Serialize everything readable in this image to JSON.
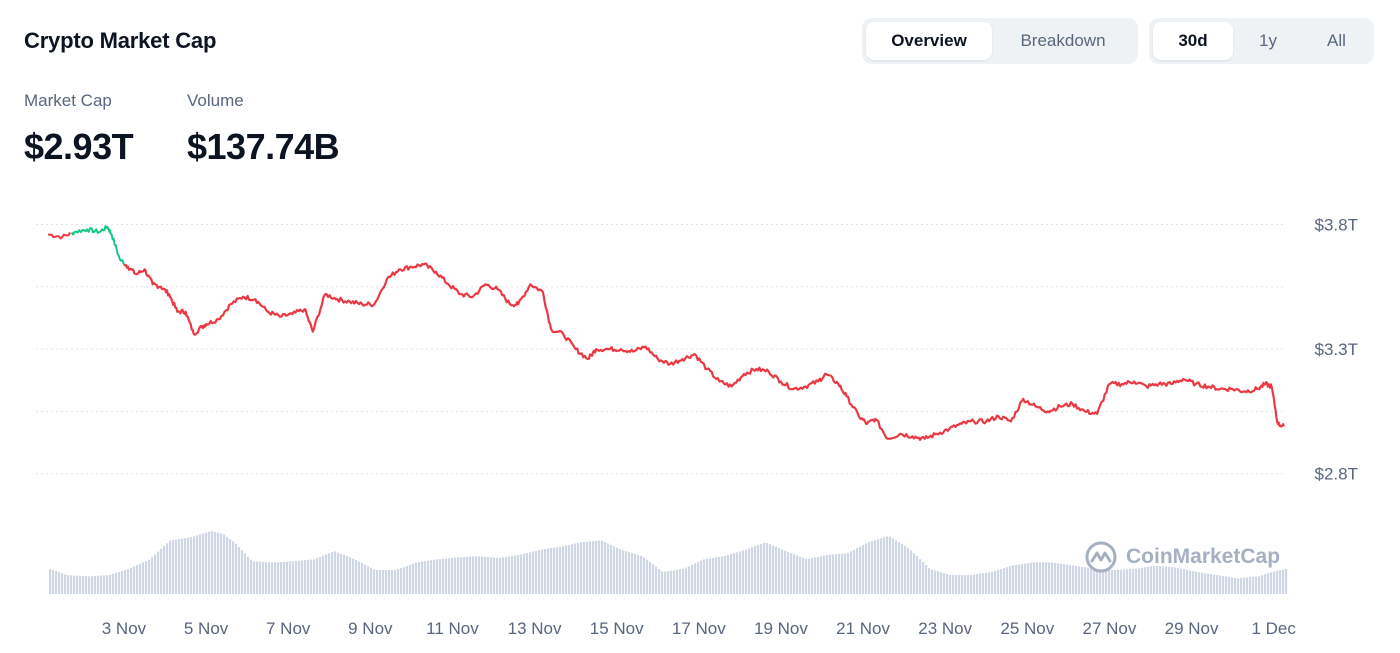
{
  "header": {
    "title": "Crypto Market Cap",
    "view_tabs": [
      {
        "label": "Overview",
        "active": true
      },
      {
        "label": "Breakdown",
        "active": false
      }
    ],
    "range_tabs": [
      {
        "label": "30d",
        "active": true
      },
      {
        "label": "1y",
        "active": false
      },
      {
        "label": "All",
        "active": false
      }
    ]
  },
  "stats": {
    "market_cap": {
      "label": "Market Cap",
      "value": "$2.93T"
    },
    "volume": {
      "label": "Volume",
      "value": "$137.74B"
    }
  },
  "watermark": "CoinMarketCap",
  "colors": {
    "line_down": "#ea3943",
    "line_up": "#16c784",
    "volume_fill": "#cfd6e4",
    "grid": "#e0e3eb",
    "text_secondary": "#58667e"
  },
  "chart_data": {
    "type": "line",
    "title": "",
    "xlabel": "",
    "ylabel": "",
    "x_ticks": [
      "3 Nov",
      "5 Nov",
      "7 Nov",
      "9 Nov",
      "11 Nov",
      "13 Nov",
      "15 Nov",
      "17 Nov",
      "19 Nov",
      "21 Nov",
      "23 Nov",
      "25 Nov",
      "27 Nov",
      "29 Nov",
      "1 Dec"
    ],
    "y_ticks": [
      "$2.8T",
      "$3.3T",
      "$3.8T"
    ],
    "y_tick_values": [
      2.8,
      3.3,
      3.8
    ],
    "ylim": [
      2.55,
      3.85
    ],
    "xlim": [
      1.15,
      31.3
    ],
    "y_gridlines": [
      2.8,
      3.05,
      3.3,
      3.55,
      3.8
    ],
    "grid": "horizontal dotted",
    "series": [
      {
        "unit": "USD trillions",
        "x": [
          1.15,
          1.5,
          1.8,
          2.1,
          2.4,
          2.6,
          2.7,
          2.9,
          3.1,
          3.3,
          3.5,
          3.7,
          3.9,
          4.1,
          4.3,
          4.5,
          4.7,
          4.9,
          5.0,
          5.3,
          5.6,
          5.9,
          6.2,
          6.5,
          6.8,
          7.1,
          7.4,
          7.6,
          7.9,
          8.2,
          8.5,
          8.8,
          9.1,
          9.4,
          9.7,
          10.0,
          10.3,
          10.6,
          10.9,
          11.2,
          11.5,
          11.8,
          12.1,
          12.4,
          12.6,
          12.9,
          13.2,
          13.4,
          13.7,
          14.0,
          14.3,
          14.5,
          14.8,
          15.1,
          15.4,
          15.7,
          16.0,
          16.3,
          16.6,
          16.9,
          17.2,
          17.5,
          17.8,
          18.1,
          18.4,
          18.7,
          19.0,
          19.3,
          19.6,
          19.9,
          20.1,
          20.4,
          20.6,
          20.9,
          21.1,
          21.3,
          21.6,
          21.9,
          22.2,
          22.5,
          22.8,
          23.1,
          23.4,
          23.7,
          24.0,
          24.3,
          24.6,
          24.9,
          25.2,
          25.5,
          25.8,
          26.1,
          26.4,
          26.7,
          27.0,
          27.3,
          27.6,
          27.9,
          28.2,
          28.5,
          28.8,
          29.1,
          29.4,
          29.7,
          30.0,
          30.3,
          30.6,
          30.8,
          30.95,
          31.1,
          31.25
        ],
        "y": [
          3.76,
          3.75,
          3.77,
          3.78,
          3.77,
          3.79,
          3.76,
          3.66,
          3.63,
          3.6,
          3.62,
          3.56,
          3.55,
          3.52,
          3.45,
          3.45,
          3.36,
          3.39,
          3.4,
          3.42,
          3.48,
          3.51,
          3.5,
          3.45,
          3.43,
          3.44,
          3.46,
          3.37,
          3.52,
          3.5,
          3.49,
          3.48,
          3.48,
          3.58,
          3.62,
          3.63,
          3.64,
          3.61,
          3.56,
          3.52,
          3.51,
          3.56,
          3.54,
          3.48,
          3.48,
          3.56,
          3.53,
          3.38,
          3.36,
          3.3,
          3.26,
          3.3,
          3.3,
          3.3,
          3.29,
          3.31,
          3.26,
          3.24,
          3.26,
          3.28,
          3.22,
          3.17,
          3.15,
          3.2,
          3.22,
          3.21,
          3.17,
          3.14,
          3.15,
          3.17,
          3.2,
          3.16,
          3.11,
          3.03,
          3.0,
          3.02,
          2.94,
          2.96,
          2.95,
          2.94,
          2.96,
          2.98,
          3.0,
          3.01,
          3.01,
          3.03,
          3.01,
          3.1,
          3.07,
          3.05,
          3.07,
          3.08,
          3.05,
          3.04,
          3.16,
          3.16,
          3.17,
          3.15,
          3.16,
          3.16,
          3.18,
          3.16,
          3.15,
          3.14,
          3.14,
          3.13,
          3.14,
          3.16,
          3.15,
          3.0,
          2.99
        ]
      }
    ],
    "up_segment_x_range": [
      1.7,
      3.0
    ],
    "volume_series": {
      "unit": "relative",
      "x": [
        1.15,
        1.6,
        2.1,
        2.6,
        3.1,
        3.6,
        4.1,
        4.6,
        5.1,
        5.4,
        5.7,
        6.1,
        6.6,
        7.1,
        7.6,
        8.1,
        8.6,
        9.1,
        9.6,
        10.1,
        10.6,
        11.1,
        11.6,
        12.1,
        12.6,
        13.1,
        13.6,
        14.1,
        14.6,
        15.1,
        15.6,
        16.1,
        16.6,
        17.1,
        17.6,
        18.1,
        18.6,
        19.1,
        19.6,
        20.1,
        20.6,
        21.1,
        21.6,
        22.1,
        22.6,
        23.1,
        23.6,
        24.1,
        24.6,
        25.1,
        25.6,
        26.1,
        26.6,
        27.1,
        27.6,
        28.1,
        28.6,
        29.1,
        29.6,
        30.1,
        30.6,
        31.0,
        31.3
      ],
      "y": [
        0.4,
        0.3,
        0.28,
        0.3,
        0.4,
        0.55,
        0.85,
        0.9,
        1.0,
        0.95,
        0.8,
        0.52,
        0.5,
        0.52,
        0.55,
        0.68,
        0.55,
        0.38,
        0.38,
        0.5,
        0.55,
        0.58,
        0.6,
        0.57,
        0.62,
        0.7,
        0.75,
        0.82,
        0.85,
        0.7,
        0.6,
        0.35,
        0.4,
        0.55,
        0.6,
        0.7,
        0.82,
        0.68,
        0.55,
        0.62,
        0.65,
        0.82,
        0.92,
        0.72,
        0.4,
        0.3,
        0.3,
        0.35,
        0.45,
        0.5,
        0.5,
        0.45,
        0.4,
        0.38,
        0.4,
        0.45,
        0.42,
        0.35,
        0.3,
        0.25,
        0.28,
        0.36,
        0.4
      ]
    }
  }
}
